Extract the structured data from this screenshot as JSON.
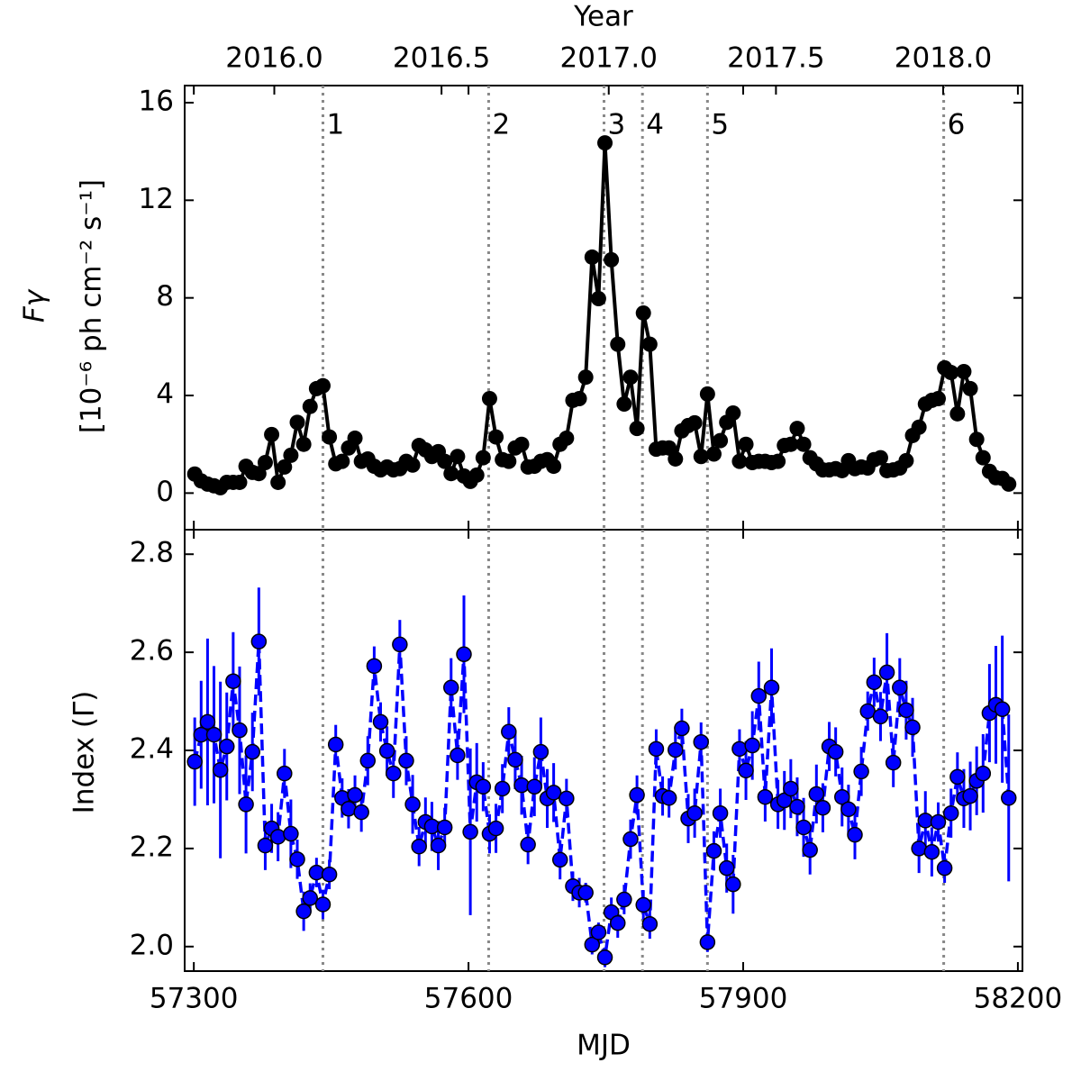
{
  "chart_data": [
    {
      "type": "line",
      "color": "#000000",
      "ylabel": "Fγ",
      "ylabel_units": "[10⁻⁶ ph cm⁻² s⁻¹]",
      "x2label": "Year",
      "x2lim": [
        2015.732,
        2018.237
      ],
      "x2ticks": [
        {
          "value": 2016,
          "label": "2016.0"
        },
        2016.5,
        {
          "value": 2017,
          "label": "2017.0"
        },
        2017.5,
        {
          "value": 2018,
          "label": "2018.0"
        }
      ],
      "xlim": [
        57290,
        58205
      ],
      "ylim": [
        -1.5,
        16.7
      ],
      "yticks": [
        0,
        4,
        8,
        12,
        16
      ],
      "markers": [
        {
          "x": 57441,
          "label": "1"
        },
        {
          "x": 57622,
          "label": "2"
        },
        {
          "x": 57748,
          "label": "3"
        },
        {
          "x": 57790,
          "label": "4"
        },
        {
          "x": 57861,
          "label": "5"
        },
        {
          "x": 58119,
          "label": "6"
        }
      ],
      "marker_color": "#888888",
      "x": [
        57301,
        57308,
        57315,
        57322,
        57329,
        57336,
        57343,
        57350,
        57357,
        57364,
        57371,
        57378,
        57385,
        57392,
        57399,
        57406,
        57413,
        57420,
        57427,
        57434,
        57441,
        57448,
        57455,
        57462,
        57469,
        57476,
        57483,
        57490,
        57497,
        57504,
        57511,
        57518,
        57525,
        57532,
        57539,
        57546,
        57553,
        57560,
        57567,
        57574,
        57581,
        57588,
        57595,
        57602,
        57609,
        57616,
        57623,
        57630,
        57637,
        57644,
        57651,
        57658,
        57665,
        57672,
        57679,
        57686,
        57693,
        57700,
        57707,
        57714,
        57721,
        57728,
        57735,
        57742,
        57749,
        57756,
        57763,
        57770,
        57777,
        57784,
        57791,
        57798,
        57805,
        57812,
        57819,
        57826,
        57833,
        57840,
        57847,
        57854,
        57861,
        57868,
        57875,
        57882,
        57889,
        57896,
        57903,
        57910,
        57917,
        57924,
        57931,
        57938,
        57945,
        57952,
        57959,
        57966,
        57973,
        57980,
        57987,
        57994,
        58001,
        58008,
        58015,
        58022,
        58029,
        58036,
        58043,
        58050,
        58057,
        58064,
        58071,
        58078,
        58085,
        58092,
        58099,
        58106,
        58113,
        58120,
        58127,
        58134,
        58141,
        58148,
        58155,
        58162,
        58169,
        58176,
        58183,
        58190
      ],
      "values": [
        0.78,
        0.5,
        0.37,
        0.3,
        0.22,
        0.44,
        0.44,
        0.44,
        1.1,
        0.85,
        0.8,
        1.25,
        2.4,
        0.44,
        1.07,
        1.55,
        2.9,
        2.0,
        3.55,
        4.28,
        4.4,
        2.3,
        1.2,
        1.3,
        1.85,
        2.25,
        1.3,
        1.4,
        1.1,
        0.95,
        1.07,
        0.95,
        1.0,
        1.3,
        1.15,
        1.95,
        1.77,
        1.5,
        1.7,
        1.3,
        0.8,
        1.5,
        0.7,
        0.48,
        0.74,
        1.45,
        3.87,
        2.3,
        1.37,
        1.3,
        1.85,
        2.0,
        1.07,
        1.1,
        1.3,
        1.37,
        1.1,
        2.0,
        2.25,
        3.8,
        3.87,
        4.75,
        9.67,
        7.97,
        14.35,
        9.56,
        6.1,
        3.65,
        4.75,
        2.65,
        7.38,
        6.1,
        1.8,
        1.85,
        1.85,
        1.4,
        2.55,
        2.77,
        2.88,
        1.5,
        4.06,
        1.6,
        2.15,
        2.9,
        3.28,
        1.3,
        2.0,
        1.25,
        1.3,
        1.3,
        1.25,
        1.3,
        1.95,
        2.0,
        2.65,
        2.0,
        1.45,
        1.2,
        0.95,
        0.95,
        1.0,
        0.92,
        1.33,
        1.0,
        1.07,
        1.03,
        1.37,
        1.45,
        0.92,
        0.95,
        1.03,
        1.33,
        2.36,
        2.7,
        3.65,
        3.8,
        3.87,
        5.13,
        4.94,
        3.25,
        4.98,
        4.28,
        2.2,
        1.45,
        0.89,
        0.63,
        0.6,
        0.37
      ]
    },
    {
      "type": "errorbar",
      "color": "#0000ff",
      "edgecolor": "#000000",
      "xlabel": "MJD",
      "ylabel": "Index (Γ)",
      "xlim": [
        57290,
        58205
      ],
      "xticks": [
        57300,
        57600,
        57900,
        58200
      ],
      "ylim": [
        1.95,
        2.85
      ],
      "yticks": [
        {
          "value": 2,
          "label": "2.0"
        },
        2.2,
        2.4,
        2.6,
        2.8
      ],
      "x": [
        57301,
        57308,
        57315,
        57322,
        57329,
        57336,
        57343,
        57350,
        57357,
        57364,
        57371,
        57378,
        57385,
        57392,
        57399,
        57406,
        57413,
        57420,
        57427,
        57434,
        57441,
        57448,
        57455,
        57462,
        57469,
        57476,
        57483,
        57490,
        57497,
        57504,
        57511,
        57518,
        57525,
        57532,
        57539,
        57546,
        57553,
        57560,
        57567,
        57574,
        57581,
        57588,
        57595,
        57602,
        57609,
        57616,
        57623,
        57630,
        57637,
        57644,
        57651,
        57658,
        57665,
        57672,
        57679,
        57686,
        57693,
        57700,
        57707,
        57714,
        57721,
        57728,
        57735,
        57742,
        57749,
        57756,
        57763,
        57770,
        57777,
        57784,
        57791,
        57798,
        57805,
        57812,
        57819,
        57826,
        57833,
        57840,
        57847,
        57854,
        57861,
        57868,
        57875,
        57882,
        57889,
        57896,
        57903,
        57910,
        57917,
        57924,
        57931,
        57938,
        57945,
        57952,
        57959,
        57966,
        57973,
        57980,
        57987,
        57994,
        58001,
        58008,
        58015,
        58022,
        58029,
        58036,
        58043,
        58050,
        58057,
        58064,
        58071,
        58078,
        58085,
        58092,
        58099,
        58106,
        58113,
        58120,
        58127,
        58134,
        58141,
        58148,
        58155,
        58162,
        58169,
        58176,
        58183,
        58190
      ],
      "values": [
        2.377,
        2.432,
        2.458,
        2.432,
        2.36,
        2.408,
        2.541,
        2.441,
        2.29,
        2.397,
        2.622,
        2.206,
        2.241,
        2.224,
        2.353,
        2.23,
        2.178,
        2.072,
        2.099,
        2.151,
        2.086,
        2.147,
        2.412,
        2.303,
        2.281,
        2.309,
        2.274,
        2.379,
        2.572,
        2.458,
        2.399,
        2.353,
        2.616,
        2.379,
        2.29,
        2.204,
        2.254,
        2.245,
        2.206,
        2.243,
        2.528,
        2.39,
        2.596,
        2.234,
        2.335,
        2.326,
        2.23,
        2.241,
        2.322,
        2.438,
        2.381,
        2.329,
        2.208,
        2.326,
        2.397,
        2.302,
        2.314,
        2.177,
        2.302,
        2.123,
        2.11,
        2.11,
        2.004,
        2.029,
        1.978,
        2.07,
        2.048,
        2.096,
        2.219,
        2.309,
        2.085,
        2.046,
        2.403,
        2.307,
        2.303,
        2.401,
        2.445,
        2.261,
        2.272,
        2.417,
        2.009,
        2.195,
        2.272,
        2.16,
        2.127,
        2.403,
        2.359,
        2.41,
        2.511,
        2.305,
        2.528,
        2.29,
        2.298,
        2.322,
        2.285,
        2.243,
        2.197,
        2.311,
        2.283,
        2.408,
        2.397,
        2.305,
        2.28,
        2.228,
        2.357,
        2.48,
        2.539,
        2.469,
        2.559,
        2.375,
        2.528,
        2.482,
        2.447,
        2.2,
        2.257,
        2.193,
        2.254,
        2.16,
        2.272,
        2.346,
        2.302,
        2.307,
        2.338,
        2.353,
        2.476,
        2.493,
        2.484,
        2.303
      ],
      "errors": [
        0.09,
        0.11,
        0.17,
        0.14,
        0.18,
        0.11,
        0.1,
        0.13,
        0.1,
        0.08,
        0.11,
        0.05,
        0.05,
        0.05,
        0.05,
        0.07,
        0.04,
        0.04,
        0.03,
        0.03,
        0.03,
        0.03,
        0.04,
        0.04,
        0.04,
        0.04,
        0.04,
        0.05,
        0.04,
        0.04,
        0.05,
        0.05,
        0.05,
        0.05,
        0.06,
        0.04,
        0.05,
        0.05,
        0.05,
        0.04,
        0.06,
        0.05,
        0.12,
        0.17,
        0.08,
        0.05,
        0.04,
        0.05,
        0.05,
        0.05,
        0.06,
        0.06,
        0.04,
        0.06,
        0.07,
        0.06,
        0.06,
        0.04,
        0.04,
        0.03,
        0.03,
        0.02,
        0.02,
        0.02,
        0.02,
        0.03,
        0.03,
        0.03,
        0.04,
        0.04,
        0.03,
        0.03,
        0.04,
        0.04,
        0.04,
        0.04,
        0.04,
        0.05,
        0.05,
        0.04,
        0.02,
        0.04,
        0.05,
        0.05,
        0.06,
        0.04,
        0.06,
        0.07,
        0.07,
        0.05,
        0.08,
        0.05,
        0.06,
        0.06,
        0.06,
        0.06,
        0.05,
        0.06,
        0.05,
        0.05,
        0.05,
        0.06,
        0.05,
        0.05,
        0.05,
        0.04,
        0.05,
        0.05,
        0.08,
        0.05,
        0.06,
        0.06,
        0.06,
        0.05,
        0.06,
        0.05,
        0.04,
        0.03,
        0.05,
        0.05,
        0.06,
        0.07,
        0.07,
        0.08,
        0.1,
        0.12,
        0.15,
        0.17
      ]
    }
  ]
}
